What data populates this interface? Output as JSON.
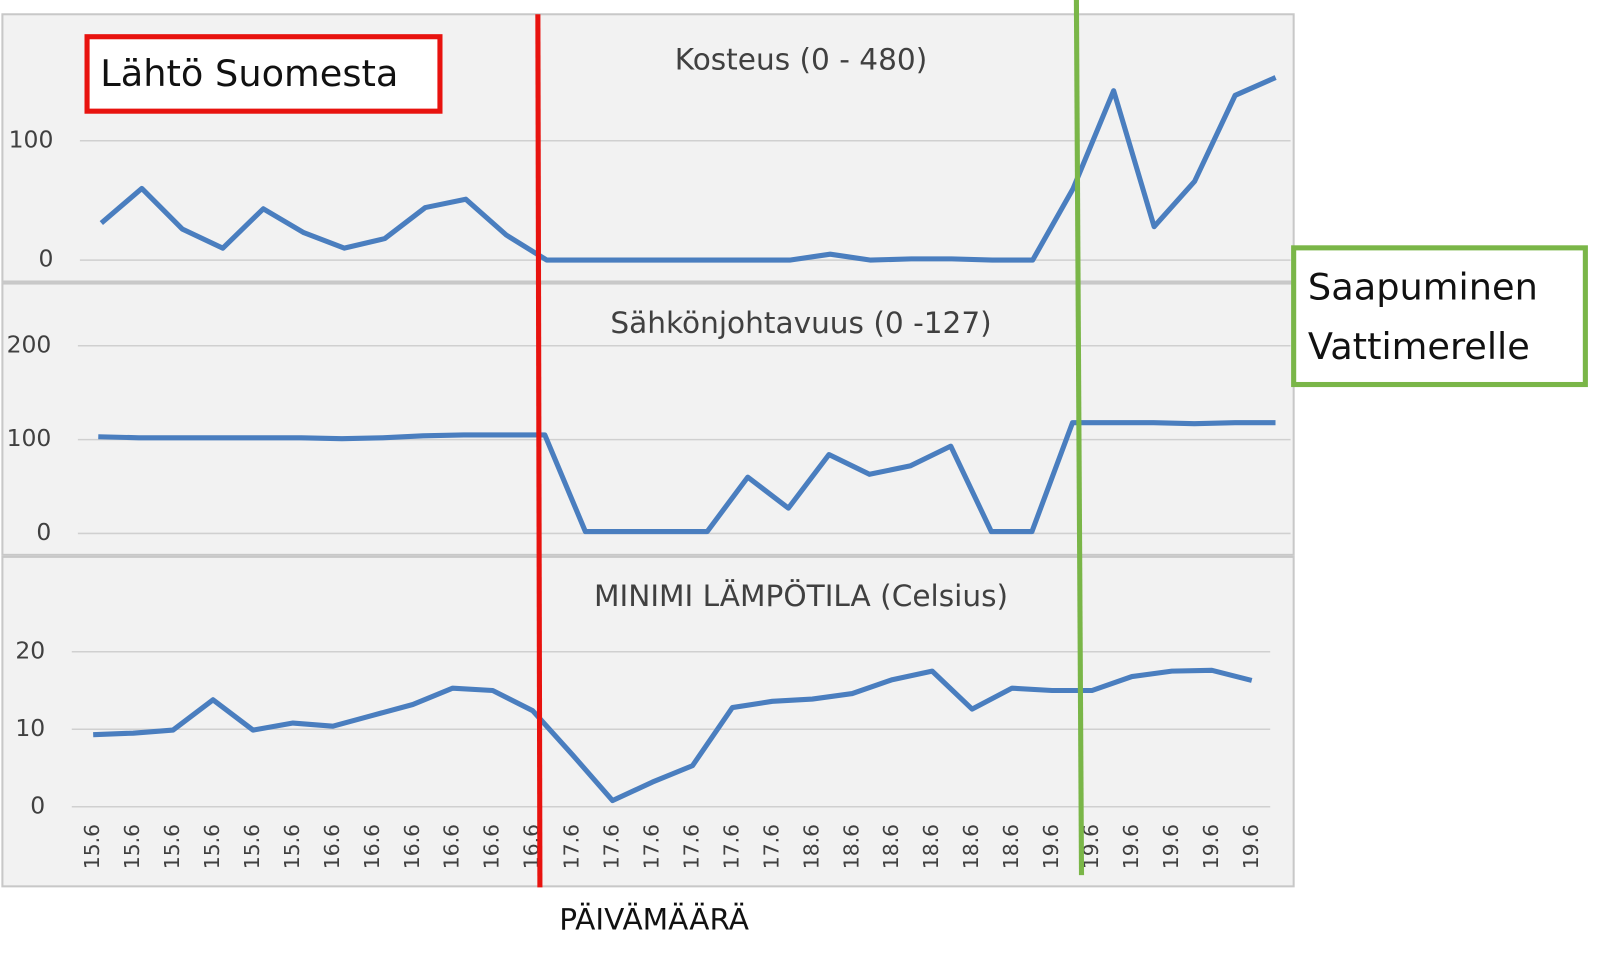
{
  "chart_data": [
    {
      "type": "line",
      "title": "Kosteus (0 - 480)",
      "ylim": [
        0,
        200
      ],
      "yticks": [
        0,
        100
      ],
      "grid": true,
      "series": [
        {
          "color": "#4a7ebf",
          "values": [
            31,
            60,
            26,
            10,
            43,
            23,
            10,
            18,
            44,
            51,
            21,
            0,
            0,
            0,
            0,
            0,
            0,
            0,
            5,
            0,
            1,
            1,
            0,
            0,
            60,
            142,
            28,
            66,
            138,
            153
          ]
        }
      ]
    },
    {
      "type": "line",
      "title": "Sähkönjohtavuus (0 -127)",
      "ylim": [
        0,
        250
      ],
      "yticks": [
        0,
        100,
        200
      ],
      "grid": true,
      "series": [
        {
          "color": "#4a7ebf",
          "values": [
            103,
            102,
            102,
            102,
            102,
            102,
            101,
            102,
            104,
            105,
            105,
            105,
            2,
            2,
            2,
            2,
            60,
            27,
            84,
            63,
            72,
            93,
            2,
            2,
            118,
            118,
            118,
            117,
            118,
            118
          ]
        }
      ]
    },
    {
      "type": "line",
      "title": "MINIMI LÄMPÖTILA (Celsius)",
      "xlabel": "PÄIVÄMÄÄRÄ",
      "ylim": [
        0,
        30
      ],
      "yticks": [
        0,
        10,
        20
      ],
      "grid": true,
      "categories": [
        "15.6",
        "15.6",
        "15.6",
        "15.6",
        "15.6",
        "15.6",
        "16.6",
        "16.6",
        "16.6",
        "16.6",
        "16.6",
        "16.6",
        "17.6",
        "17.6",
        "17.6",
        "17.6",
        "17.6",
        "17.6",
        "18.6",
        "18.6",
        "18.6",
        "18.6",
        "18.6",
        "18.6",
        "19.6",
        "19.6",
        "19.6",
        "19.6",
        "19.6",
        "19.6"
      ],
      "series": [
        {
          "color": "#4a7ebf",
          "values": [
            9.3,
            9.5,
            9.9,
            13.8,
            9.9,
            10.8,
            10.4,
            11.8,
            13.2,
            15.3,
            15.0,
            12.4,
            6.7,
            0.8,
            3.2,
            5.3,
            12.8,
            13.6,
            13.9,
            14.6,
            16.4,
            17.5,
            12.6,
            15.3,
            15.0,
            15.0,
            16.8,
            17.5,
            17.6,
            16.3
          ]
        }
      ]
    }
  ],
  "annotations": [
    "Lähtö Suomesta",
    "Saapuminen Vattimerelle"
  ]
}
